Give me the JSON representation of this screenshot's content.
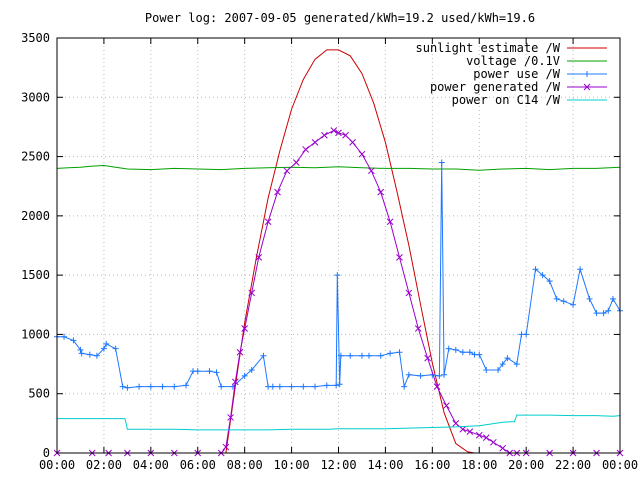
{
  "chart_data": {
    "type": "line",
    "title": "Power log: 2007-09-05 generated/kWh=19.2 used/kWh=19.6",
    "xlabel": "",
    "ylabel": "",
    "x_unit": "hours",
    "xlim": [
      0,
      24
    ],
    "ylim": [
      0,
      3500
    ],
    "grid": true,
    "legend_position": "top-right",
    "x_ticks": [
      {
        "value": 0,
        "label": "00:00"
      },
      {
        "value": 2,
        "label": "02:00"
      },
      {
        "value": 4,
        "label": "04:00"
      },
      {
        "value": 6,
        "label": "06:00"
      },
      {
        "value": 8,
        "label": "08:00"
      },
      {
        "value": 10,
        "label": "10:00"
      },
      {
        "value": 12,
        "label": "12:00"
      },
      {
        "value": 14,
        "label": "14:00"
      },
      {
        "value": 16,
        "label": "16:00"
      },
      {
        "value": 18,
        "label": "18:00"
      },
      {
        "value": 20,
        "label": "20:00"
      },
      {
        "value": 22,
        "label": "22:00"
      },
      {
        "value": 24,
        "label": "00:00"
      }
    ],
    "y_ticks": [
      {
        "value": 0,
        "label": "0"
      },
      {
        "value": 500,
        "label": "500"
      },
      {
        "value": 1000,
        "label": "1000"
      },
      {
        "value": 1500,
        "label": "1500"
      },
      {
        "value": 2000,
        "label": "2000"
      },
      {
        "value": 2500,
        "label": "2500"
      },
      {
        "value": 3000,
        "label": "3000"
      },
      {
        "value": 3500,
        "label": "3500"
      }
    ],
    "series": [
      {
        "name": "sunlight estimate /W",
        "color": "#cc0000",
        "style": "line",
        "x": [
          7.2,
          7.6,
          8.0,
          8.5,
          9.0,
          9.5,
          10.0,
          10.5,
          11.0,
          11.5,
          12.0,
          12.5,
          13.0,
          13.5,
          14.0,
          14.5,
          15.0,
          15.5,
          16.0,
          16.5,
          17.0,
          17.5,
          17.8
        ],
        "y": [
          0,
          560,
          1100,
          1650,
          2150,
          2550,
          2900,
          3150,
          3320,
          3400,
          3400,
          3350,
          3200,
          2950,
          2620,
          2200,
          1750,
          1250,
          760,
          340,
          80,
          10,
          0
        ]
      },
      {
        "name": "voltage /0.1V",
        "color": "#00a000",
        "style": "line",
        "x": [
          0,
          0.5,
          1,
          1.5,
          2,
          2.5,
          3,
          4,
          5,
          6,
          7,
          8,
          9,
          10,
          11,
          12,
          13,
          14,
          15,
          16,
          17,
          18,
          19,
          20,
          21,
          22,
          23,
          24
        ],
        "y": [
          2400,
          2405,
          2410,
          2420,
          2425,
          2410,
          2395,
          2390,
          2400,
          2395,
          2390,
          2400,
          2405,
          2410,
          2405,
          2415,
          2405,
          2400,
          2400,
          2395,
          2395,
          2385,
          2395,
          2400,
          2390,
          2400,
          2400,
          2410
        ]
      },
      {
        "name": "power use /W",
        "color": "#1e78ff",
        "style": "linespoints",
        "marker": "+",
        "x": [
          0,
          0.3,
          0.7,
          1.0,
          1.05,
          1.4,
          1.7,
          2.0,
          2.1,
          2.5,
          2.8,
          3.0,
          3.5,
          4.0,
          4.5,
          5.0,
          5.5,
          5.8,
          6.0,
          6.5,
          6.8,
          7.0,
          7.5,
          8.0,
          8.3,
          8.8,
          9.0,
          9.2,
          9.5,
          10.0,
          10.5,
          11.0,
          11.5,
          11.9,
          11.95,
          12.05,
          12.1,
          12.5,
          13.0,
          13.3,
          13.8,
          14.2,
          14.6,
          14.8,
          15.0,
          15.5,
          16.0,
          16.3,
          16.4,
          16.5,
          16.7,
          17.0,
          17.3,
          17.6,
          17.8,
          18.0,
          18.3,
          18.8,
          19.0,
          19.2,
          19.6,
          19.8,
          20.0,
          20.4,
          20.7,
          21.0,
          21.3,
          21.6,
          22.0,
          22.3,
          22.7,
          23.0,
          23.3,
          23.5,
          23.7,
          24.0
        ],
        "y": [
          980,
          980,
          950,
          870,
          840,
          830,
          820,
          880,
          920,
          880,
          560,
          550,
          560,
          560,
          560,
          560,
          570,
          690,
          690,
          690,
          680,
          560,
          560,
          650,
          700,
          820,
          560,
          560,
          560,
          560,
          560,
          560,
          570,
          570,
          1500,
          580,
          820,
          820,
          820,
          820,
          820,
          840,
          850,
          560,
          660,
          650,
          660,
          650,
          2450,
          660,
          880,
          870,
          850,
          850,
          830,
          830,
          700,
          700,
          750,
          800,
          750,
          1000,
          1000,
          1550,
          1500,
          1450,
          1300,
          1280,
          1250,
          1550,
          1300,
          1180,
          1180,
          1200,
          1300,
          1200
        ]
      },
      {
        "name": "power generated /W",
        "color": "#9900cc",
        "style": "linespoints",
        "marker": "x",
        "x": [
          0,
          1.5,
          2.2,
          3,
          4,
          5,
          6,
          7.0,
          7.2,
          7.4,
          7.6,
          7.8,
          8.0,
          8.3,
          8.6,
          9.0,
          9.4,
          9.8,
          10.2,
          10.6,
          11.0,
          11.4,
          11.8,
          12.0,
          12.3,
          12.6,
          13.0,
          13.4,
          13.8,
          14.2,
          14.6,
          15.0,
          15.4,
          15.8,
          16.2,
          16.6,
          17.0,
          17.3,
          17.6,
          18.0,
          18.3,
          18.6,
          19.0,
          19.3,
          19.6,
          20,
          21,
          22,
          23,
          24
        ],
        "y": [
          0,
          0,
          0,
          0,
          0,
          0,
          0,
          0,
          50,
          300,
          600,
          850,
          1050,
          1350,
          1650,
          1950,
          2200,
          2380,
          2450,
          2560,
          2620,
          2680,
          2720,
          2700,
          2680,
          2620,
          2520,
          2380,
          2200,
          1950,
          1650,
          1350,
          1050,
          800,
          560,
          400,
          250,
          200,
          180,
          150,
          130,
          90,
          40,
          0,
          0,
          0,
          0,
          0,
          0,
          0
        ]
      },
      {
        "name": "power on C14 /W",
        "color": "#00cccc",
        "style": "line",
        "x": [
          0,
          1.0,
          2.0,
          2.9,
          3.0,
          4,
          5,
          6,
          7,
          8,
          9,
          10,
          11,
          11.6,
          12,
          13,
          14,
          15,
          16,
          17,
          18,
          19,
          19.5,
          19.6,
          20,
          21,
          22,
          23,
          23.7,
          24
        ],
        "y": [
          290,
          290,
          290,
          290,
          200,
          200,
          200,
          195,
          195,
          195,
          195,
          200,
          200,
          200,
          205,
          205,
          205,
          210,
          215,
          220,
          230,
          260,
          265,
          320,
          320,
          320,
          315,
          315,
          310,
          315
        ]
      }
    ]
  }
}
